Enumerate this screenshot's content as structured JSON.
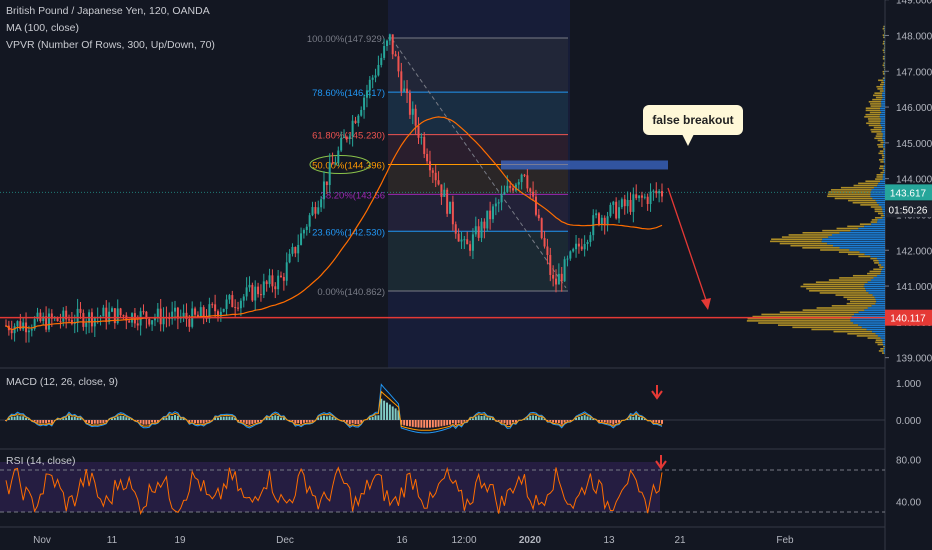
{
  "header": {
    "title": "British Pound / Japanese Yen, 120, OANDA",
    "ma_label": "MA (100, close)",
    "vpvr_label": "VPVR (Number Of Rows, 300, Up/Down, 70)"
  },
  "macd": {
    "label": "MACD (12, 26, close, 9)"
  },
  "rsi": {
    "label": "RSI (14, close)"
  },
  "annotation": {
    "text": "false breakout"
  },
  "price_badges": {
    "current": "143.617",
    "countdown": "01:50:26",
    "level": "140.117"
  },
  "colors": {
    "up": "#26a69a",
    "down": "#ef5350",
    "ma": "#ff6d00",
    "level": "#e53935",
    "macd": "#2196f3",
    "signal": "#ff9800",
    "rsi": "#ff6d00",
    "vpvr_up": "#1e88e5",
    "vpvr_down": "#c9a227"
  },
  "chart_data": {
    "type": "candlestick",
    "symbol": "GBPJPY",
    "timeframe": "120",
    "y_axis_ticks": [
      "149.000",
      "148.000",
      "147.000",
      "146.000",
      "145.000",
      "144.000",
      "143.000",
      "142.000",
      "141.000",
      "140.000",
      "139.000"
    ],
    "x_axis_ticks": [
      "Nov",
      "11",
      "19",
      "Dec",
      "16",
      "12:00",
      "2020",
      "13",
      "21",
      "Feb"
    ],
    "approx_close_path": [
      {
        "label": "Nov",
        "close": 139.9
      },
      {
        "label": "11",
        "close": 140.2
      },
      {
        "label": "19",
        "close": 140.1
      },
      {
        "label": "Dec",
        "close": 141.2
      },
      {
        "label": "peak",
        "close": 147.9
      },
      {
        "label": "16",
        "close": 146.2
      },
      {
        "label": "12:00",
        "close": 142.0
      },
      {
        "label": "swing high",
        "close": 144.3
      },
      {
        "label": "2020",
        "close": 141.0
      },
      {
        "label": "13",
        "close": 142.9
      },
      {
        "label": "21",
        "close": 143.617
      }
    ],
    "fibonacci": [
      {
        "label": "100.00%(147.929)",
        "price": 147.929
      },
      {
        "label": "78.60%(146.417)",
        "price": 146.417
      },
      {
        "label": "61.80%(145.230)",
        "price": 145.23
      },
      {
        "label": "50.00%(144.396)",
        "price": 144.396
      },
      {
        "label": "38.20%(143.56",
        "price": 143.56
      },
      {
        "label": "23.60%(142.530)",
        "price": 142.53
      },
      {
        "label": "0.00%(140.862)",
        "price": 140.862
      }
    ],
    "horizontal_level": 140.117,
    "current_price": 143.617,
    "macd": {
      "ticks": [
        "1.000",
        "0.000"
      ]
    },
    "rsi": {
      "ticks": [
        "80.00",
        "40.00"
      ],
      "upper_band": 70,
      "lower_band": 30
    }
  }
}
